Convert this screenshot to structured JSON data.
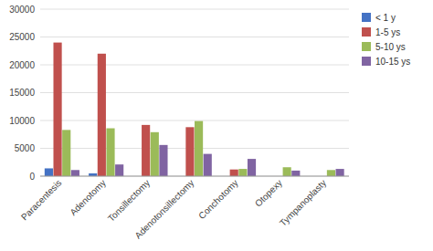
{
  "chart_data": {
    "type": "bar",
    "categories": [
      "Paracentesis",
      "Adenotomy",
      "Tonsillectomy",
      "Adenotonsillectomy",
      "Conchotomy",
      "Otopexy",
      "Tympanoplasty"
    ],
    "series": [
      {
        "name": "< 1 y",
        "color": "#4472c4",
        "values": [
          1400,
          500,
          0,
          0,
          0,
          0,
          0
        ]
      },
      {
        "name": "1-5 ys",
        "color": "#c0504d",
        "values": [
          24000,
          22000,
          9200,
          8800,
          1200,
          0,
          0
        ]
      },
      {
        "name": "5-10 ys",
        "color": "#9bbb59",
        "values": [
          8300,
          8600,
          7900,
          9900,
          1300,
          1600,
          1100
        ]
      },
      {
        "name": "10-15 ys",
        "color": "#8064a2",
        "values": [
          1100,
          2100,
          5600,
          4000,
          3100,
          1000,
          1300
        ]
      }
    ],
    "ylim": [
      0,
      30000
    ],
    "yticks": [
      0,
      5000,
      10000,
      15000,
      20000,
      25000,
      30000
    ],
    "grid": true,
    "legend": "upper right"
  }
}
